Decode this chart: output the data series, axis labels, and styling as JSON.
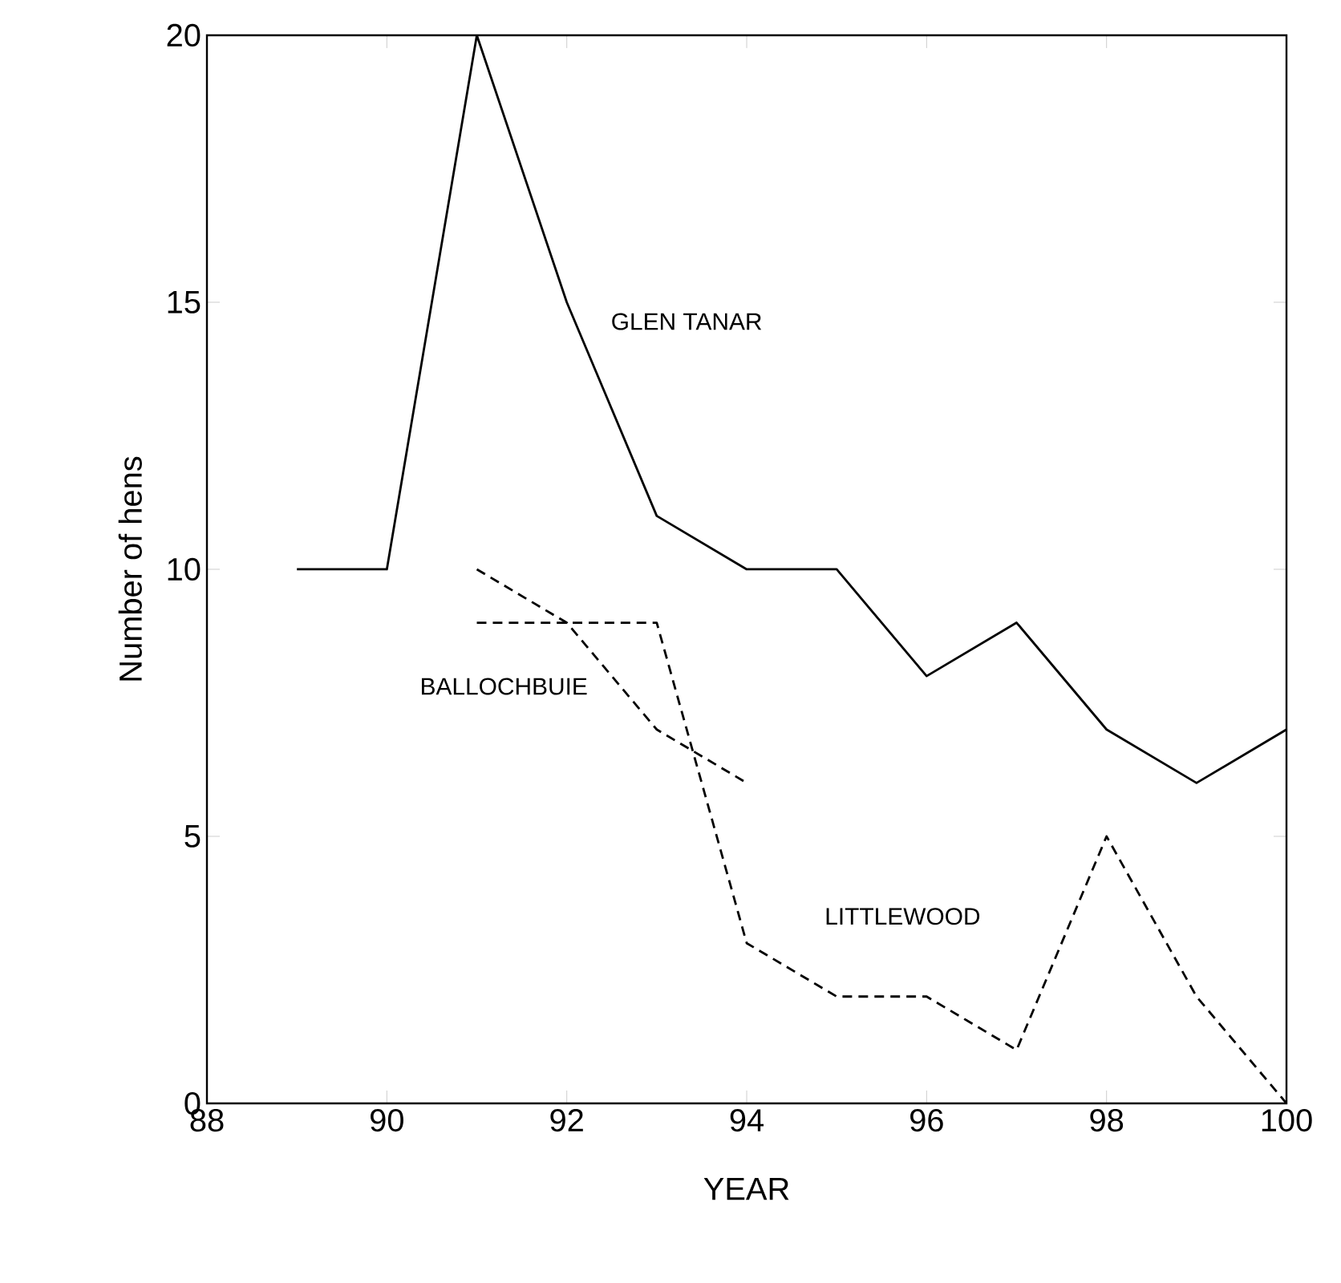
{
  "chart_data": {
    "type": "line",
    "xlabel": "YEAR",
    "ylabel": "Number of hens",
    "series": [
      {
        "name": "GLEN TANAR",
        "color": "#000000",
        "line_style": "solid",
        "x": [
          89,
          90,
          91,
          92,
          93,
          94,
          95,
          96,
          97,
          98,
          99,
          100
        ],
        "values": [
          10,
          10,
          20,
          15,
          11,
          10,
          10,
          8,
          9,
          7,
          6,
          7
        ]
      },
      {
        "name": "BALLOCHBUIE",
        "color": "#000000",
        "line_style": "dashed",
        "x": [
          91,
          92,
          93,
          94
        ],
        "values": [
          10,
          9,
          7,
          6
        ]
      },
      {
        "name": "LITTLEWOOD",
        "color": "#000000",
        "line_style": "dashed",
        "x": [
          91,
          93,
          94,
          95,
          96,
          97,
          98,
          99,
          100
        ],
        "values": [
          9,
          9,
          3,
          2,
          2,
          1,
          5,
          2,
          0
        ]
      }
    ],
    "xlim": [
      88,
      100
    ],
    "xticks": [
      88,
      90,
      92,
      94,
      96,
      98,
      100
    ],
    "ylim": [
      0,
      20
    ],
    "yticks": [
      0,
      5,
      10,
      15,
      20
    ],
    "grid": false,
    "legend": false,
    "marker": "none"
  }
}
